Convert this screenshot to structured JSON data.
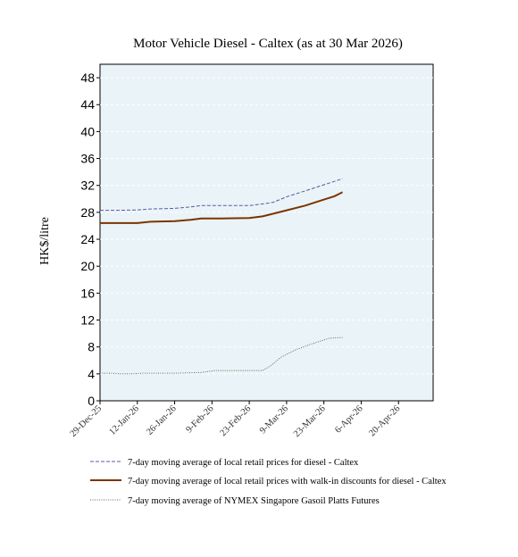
{
  "chart_data": {
    "type": "line",
    "title": "Motor Vehicle Diesel - Caltex (as at 30 Mar 2026)",
    "xlabel": "",
    "ylabel": "HK$/litre",
    "ylim": [
      0,
      50
    ],
    "yticks": [
      0,
      4,
      8,
      12,
      16,
      20,
      24,
      28,
      32,
      36,
      40,
      44,
      48
    ],
    "xlim": [
      "2025-12-29",
      "2026-05-03"
    ],
    "xticks": [
      "29-Dec-25",
      "12-Jan-26",
      "26-Jan-26",
      "9-Feb-26",
      "23-Feb-26",
      "9-Mar-26",
      "23-Mar-26",
      "6-Apr-26",
      "20-Apr-26"
    ],
    "xtick_dates": [
      "2025-12-29",
      "2026-01-12",
      "2026-01-26",
      "2026-02-09",
      "2026-02-23",
      "2026-03-09",
      "2026-03-23",
      "2026-04-06",
      "2026-04-20"
    ],
    "grid": true,
    "legend_position": "bottom",
    "series": [
      {
        "name": "7-day moving average of local retail prices for diesel - Caltex",
        "color": "#5a5aa0",
        "style": "dashed",
        "points": [
          [
            "2025-12-29",
            28.3
          ],
          [
            "2026-01-05",
            28.3
          ],
          [
            "2026-01-12",
            28.35
          ],
          [
            "2026-01-17",
            28.5
          ],
          [
            "2026-01-26",
            28.6
          ],
          [
            "2026-02-01",
            28.8
          ],
          [
            "2026-02-05",
            29.0
          ],
          [
            "2026-02-12",
            29.0
          ],
          [
            "2026-02-23",
            29.0
          ],
          [
            "2026-03-01",
            29.3
          ],
          [
            "2026-03-04",
            29.5
          ],
          [
            "2026-03-09",
            30.3
          ],
          [
            "2026-03-16",
            31.2
          ],
          [
            "2026-03-23",
            32.1
          ],
          [
            "2026-03-30",
            33.0
          ]
        ]
      },
      {
        "name": "7-day moving average of local retail prices with walk-in discounts for diesel - Caltex",
        "color": "#7a3500",
        "style": "solid",
        "points": [
          [
            "2025-12-29",
            26.4
          ],
          [
            "2026-01-05",
            26.4
          ],
          [
            "2026-01-12",
            26.4
          ],
          [
            "2026-01-17",
            26.6
          ],
          [
            "2026-01-26",
            26.7
          ],
          [
            "2026-02-01",
            26.9
          ],
          [
            "2026-02-05",
            27.1
          ],
          [
            "2026-02-12",
            27.1
          ],
          [
            "2026-02-23",
            27.15
          ],
          [
            "2026-02-28",
            27.4
          ],
          [
            "2026-03-04",
            27.8
          ],
          [
            "2026-03-09",
            28.3
          ],
          [
            "2026-03-16",
            29.0
          ],
          [
            "2026-03-23",
            29.9
          ],
          [
            "2026-03-27",
            30.4
          ],
          [
            "2026-03-30",
            31.0
          ]
        ]
      },
      {
        "name": "7-day moving average of NYMEX Singapore Gasoil Platts Futures",
        "color": "#556b55",
        "style": "dotted",
        "points": [
          [
            "2025-12-29",
            4.1
          ],
          [
            "2026-01-02",
            4.1
          ],
          [
            "2026-01-06",
            4.0
          ],
          [
            "2026-01-10",
            4.0
          ],
          [
            "2026-01-14",
            4.1
          ],
          [
            "2026-01-26",
            4.1
          ],
          [
            "2026-02-05",
            4.2
          ],
          [
            "2026-02-10",
            4.5
          ],
          [
            "2026-02-28",
            4.5
          ],
          [
            "2026-03-03",
            5.2
          ],
          [
            "2026-03-07",
            6.5
          ],
          [
            "2026-03-12",
            7.5
          ],
          [
            "2026-03-18",
            8.4
          ],
          [
            "2026-03-25",
            9.3
          ],
          [
            "2026-03-30",
            9.4
          ]
        ]
      }
    ]
  }
}
